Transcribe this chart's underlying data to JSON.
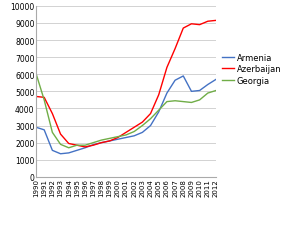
{
  "years": [
    1990,
    1991,
    1992,
    1993,
    1994,
    1995,
    1996,
    1997,
    1998,
    1999,
    2000,
    2001,
    2002,
    2003,
    2004,
    2005,
    2006,
    2007,
    2008,
    2009,
    2010,
    2011,
    2012
  ],
  "armenia": [
    2900,
    2750,
    1550,
    1350,
    1400,
    1550,
    1700,
    1880,
    2000,
    2100,
    2200,
    2300,
    2400,
    2600,
    3000,
    3800,
    4900,
    5650,
    5900,
    5000,
    5050,
    5400,
    5700
  ],
  "azerbaijan": [
    4700,
    4650,
    3700,
    2500,
    1950,
    1850,
    1750,
    1850,
    2000,
    2100,
    2300,
    2600,
    2900,
    3200,
    3700,
    4800,
    6400,
    7500,
    8700,
    8950,
    8900,
    9100,
    9150
  ],
  "georgia": [
    6050,
    4500,
    2600,
    1900,
    1700,
    1850,
    1850,
    2000,
    2150,
    2250,
    2350,
    2450,
    2650,
    3000,
    3400,
    3900,
    4400,
    4450,
    4400,
    4350,
    4500,
    4900,
    5050
  ],
  "armenia_color": "#4472C4",
  "azerbaijan_color": "#FF0000",
  "georgia_color": "#70AD47",
  "ylim": [
    0,
    10000
  ],
  "yticks": [
    0,
    1000,
    2000,
    3000,
    4000,
    5000,
    6000,
    7000,
    8000,
    9000,
    10000
  ],
  "bg_color": "#FFFFFF",
  "grid_color": "#C0C0C0"
}
